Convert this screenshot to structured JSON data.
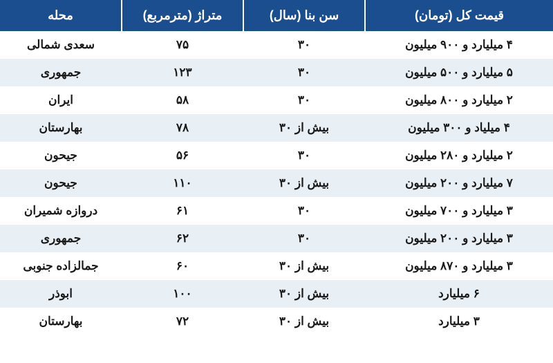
{
  "table": {
    "header_bg": "#1a4e8e",
    "header_fg": "#ffffff",
    "row_odd_bg": "#ffffff",
    "row_even_bg": "#e8eff5",
    "text_color": "#1a1a1a",
    "columns": [
      {
        "key": "price",
        "label": "قیمت کل (تومان)",
        "width": "34%"
      },
      {
        "key": "age",
        "label": "سن بنا (سال)",
        "width": "22%"
      },
      {
        "key": "area",
        "label": "متراژ (مترمربع)",
        "width": "22%"
      },
      {
        "key": "neighborhood",
        "label": "محله",
        "width": "22%"
      }
    ],
    "rows": [
      {
        "neighborhood": "سعدی شمالی",
        "area": "۷۵",
        "age": "۳۰",
        "price": "۴ میلیارد و ۹۰۰ میلیون"
      },
      {
        "neighborhood": "جمهوری",
        "area": "۱۲۳",
        "age": "۳۰",
        "price": "۵ میلیارد و ۵۰۰ میلیون"
      },
      {
        "neighborhood": "ایران",
        "area": "۵۸",
        "age": "۳۰",
        "price": "۲ میلیارد و ۸۰۰ میلیون"
      },
      {
        "neighborhood": "بهارستان",
        "area": "۷۸",
        "age": "بیش از ۳۰",
        "price": "۴ میلیاد و ۳۰۰ میلیون"
      },
      {
        "neighborhood": "جیحون",
        "area": "۵۶",
        "age": "۳۰",
        "price": "۲ میلیارد و ۲۸۰ میلیون"
      },
      {
        "neighborhood": "جیحون",
        "area": "۱۱۰",
        "age": "بیش از ۳۰",
        "price": "۷ میلیارد و ۲۰۰ میلیون"
      },
      {
        "neighborhood": "دروازه شمیران",
        "area": "۶۱",
        "age": "۳۰",
        "price": "۳ میلیارد و ۷۰۰ میلیون"
      },
      {
        "neighborhood": "جمهوری",
        "area": "۶۲",
        "age": "۳۰",
        "price": "۳ میلیارد و ۲۰۰ میلیون"
      },
      {
        "neighborhood": "جمالزاده جنوبی",
        "area": "۶۰",
        "age": "بیش از ۳۰",
        "price": "۳ میلیارد و ۸۷۰ میلیون"
      },
      {
        "neighborhood": "ابوذر",
        "area": "۱۰۰",
        "age": "بیش از ۳۰",
        "price": "۶ میلیارد"
      },
      {
        "neighborhood": "بهارستان",
        "area": "۷۲",
        "age": "بیش از ۳۰",
        "price": "۳ میلیارد"
      }
    ]
  }
}
